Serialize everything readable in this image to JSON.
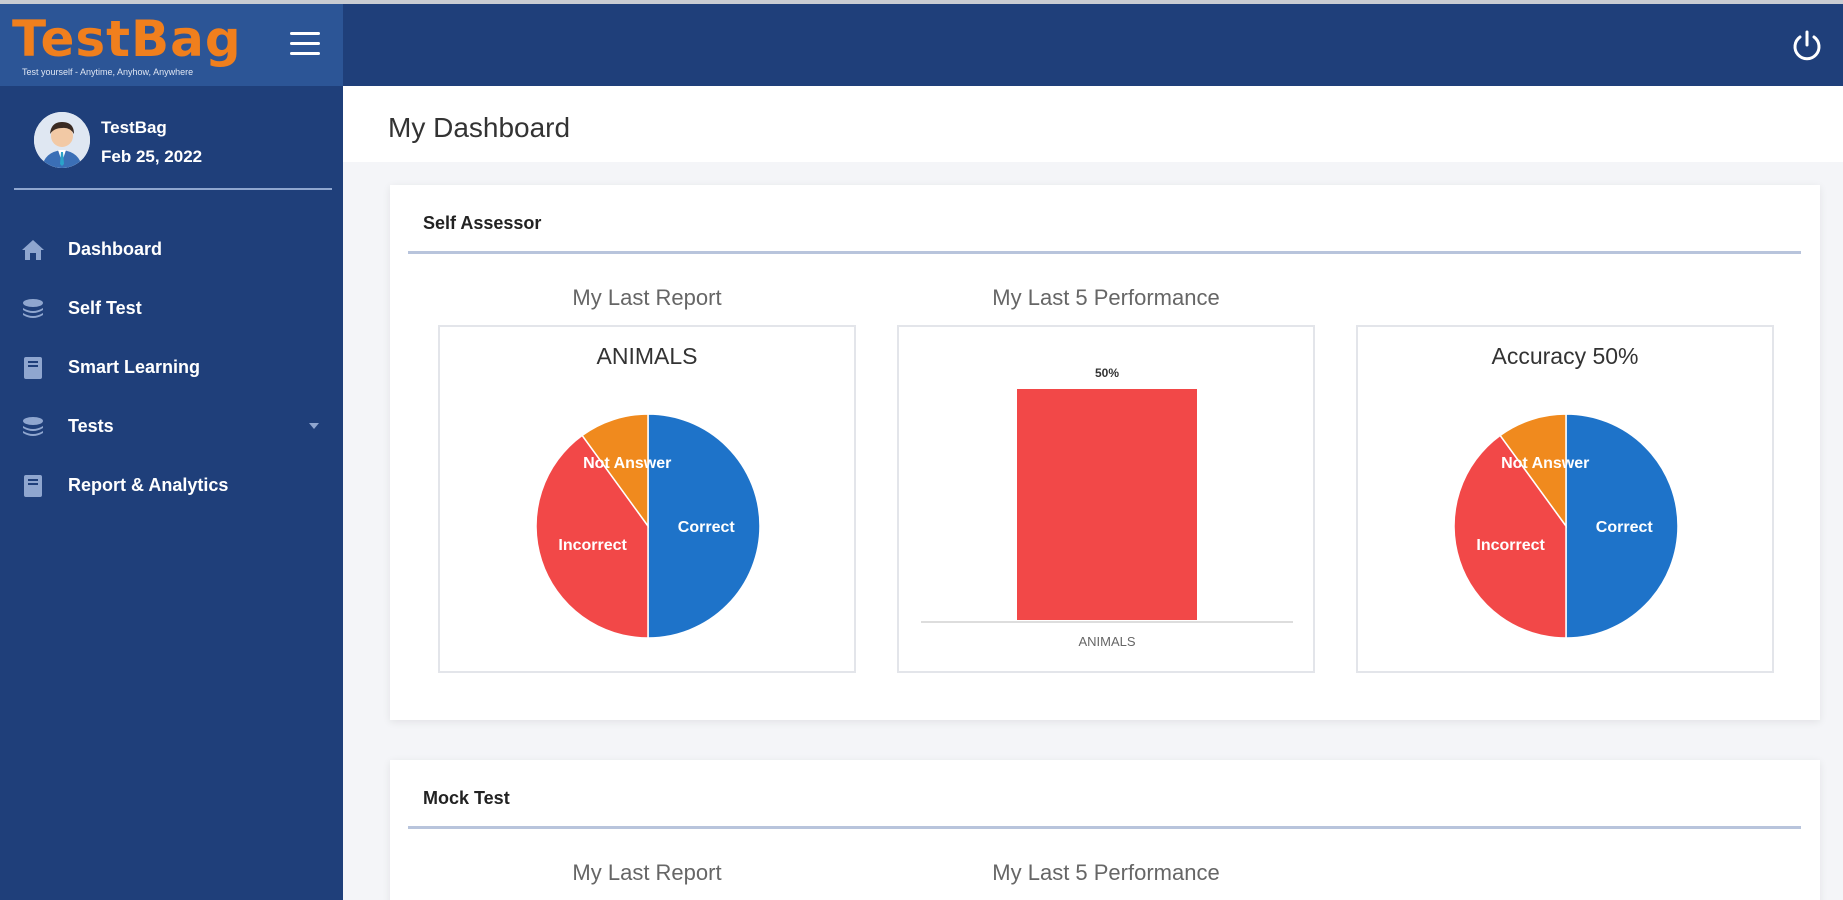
{
  "app": {
    "brand_name": "TestBag",
    "brand_tagline": "Test yourself - Anytime, Anyhow, Anywhere"
  },
  "profile": {
    "name": "TestBag",
    "date": "Feb 25, 2022"
  },
  "sidebar": {
    "items": [
      {
        "label": "Dashboard",
        "icon": "home-icon"
      },
      {
        "label": "Self Test",
        "icon": "layers-icon"
      },
      {
        "label": "Smart Learning",
        "icon": "book-icon"
      },
      {
        "label": "Tests",
        "icon": "layers-icon",
        "has_dropdown": true
      },
      {
        "label": "Report & Analytics",
        "icon": "book-icon"
      }
    ]
  },
  "page": {
    "title": "My Dashboard"
  },
  "sections": [
    {
      "title": "Self Assessor",
      "labels": {
        "last_report": "My Last Report",
        "last5": "My Last 5 Performance"
      }
    },
    {
      "title": "Mock Test",
      "labels": {
        "last_report": "My Last Report",
        "last5": "My Last 5 Performance"
      }
    }
  ],
  "colors": {
    "correct": "#1e73c9",
    "incorrect": "#f24848",
    "not_answer": "#f08a1e"
  },
  "chart_data": [
    {
      "type": "pie",
      "title": "ANIMALS",
      "labels": [
        "Correct",
        "Incorrect",
        "Not Answer"
      ],
      "values": [
        50,
        40,
        10
      ]
    },
    {
      "type": "bar",
      "categories": [
        "ANIMALS"
      ],
      "values": [
        50
      ],
      "data_labels": [
        "50%"
      ],
      "ylim": [
        0,
        50
      ]
    },
    {
      "type": "pie",
      "title": "Accuracy 50%",
      "labels": [
        "Correct",
        "Incorrect",
        "Not Answer"
      ],
      "values": [
        50,
        40,
        10
      ]
    }
  ]
}
